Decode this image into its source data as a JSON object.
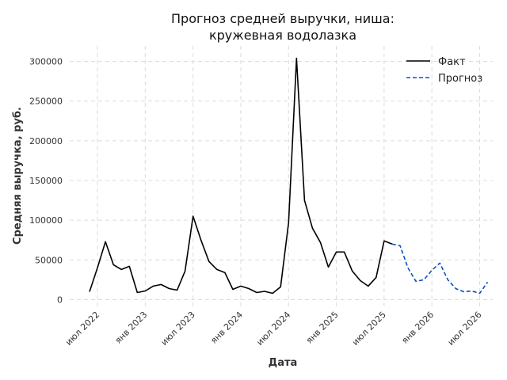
{
  "chart_data": {
    "type": "line",
    "title_lines": [
      "Прогноз средней выручки, ниша:",
      "кружевная водолазка"
    ],
    "xlabel": "Дата",
    "ylabel": "Средняя выручка, руб.",
    "ylim": [
      0,
      320000
    ],
    "y_ticks": [
      0,
      50000,
      100000,
      150000,
      200000,
      250000,
      300000
    ],
    "y_tick_labels": [
      "0",
      "50000",
      "100000",
      "150000",
      "200000",
      "250000",
      "300000"
    ],
    "x_ticks": [
      "2022-07",
      "2023-01",
      "2023-07",
      "2024-01",
      "2024-07",
      "2025-01",
      "2025-07",
      "2026-01",
      "2026-07"
    ],
    "x_tick_labels": [
      "июл 2022",
      "янв 2023",
      "июл 2023",
      "янв 2024",
      "июл 2024",
      "янв 2025",
      "июл 2025",
      "янв 2026",
      "июл 2026"
    ],
    "grid": true,
    "legend_position": "top-right",
    "series": [
      {
        "name": "Факт",
        "color": "#000000",
        "style": "solid",
        "x": [
          "2022-06",
          "2022-07",
          "2022-08",
          "2022-09",
          "2022-10",
          "2022-11",
          "2022-12",
          "2023-01",
          "2023-02",
          "2023-03",
          "2023-04",
          "2023-05",
          "2023-06",
          "2023-07",
          "2023-08",
          "2023-09",
          "2023-10",
          "2023-11",
          "2023-12",
          "2024-01",
          "2024-02",
          "2024-03",
          "2024-04",
          "2024-05",
          "2024-06",
          "2024-07",
          "2024-08",
          "2024-09",
          "2024-10",
          "2024-11",
          "2024-12",
          "2025-01",
          "2025-02",
          "2025-03",
          "2025-04",
          "2025-05",
          "2025-06",
          "2025-07",
          "2025-08"
        ],
        "values": [
          10000,
          40000,
          73000,
          44000,
          38000,
          42000,
          9000,
          11000,
          17000,
          19000,
          14000,
          12000,
          36000,
          105000,
          75000,
          48000,
          38000,
          34000,
          13000,
          17000,
          14000,
          9000,
          10500,
          8000,
          16000,
          97000,
          304000,
          125000,
          90000,
          72000,
          41000,
          60000,
          60000,
          36000,
          24000,
          17000,
          28000,
          74000,
          70000
        ]
      },
      {
        "name": "Прогноз",
        "color": "#0b4fc4",
        "style": "dashed",
        "x": [
          "2025-08",
          "2025-09",
          "2025-10",
          "2025-11",
          "2025-12",
          "2026-01",
          "2026-02",
          "2026-03",
          "2026-04",
          "2026-05",
          "2026-06",
          "2026-07",
          "2026-08"
        ],
        "values": [
          70000,
          68000,
          40000,
          23000,
          25000,
          37000,
          46000,
          25000,
          14000,
          10000,
          11000,
          8000,
          22000
        ]
      }
    ]
  }
}
